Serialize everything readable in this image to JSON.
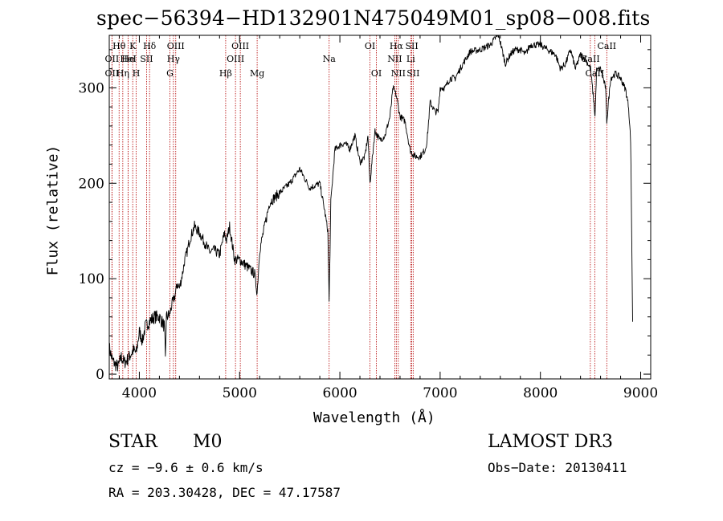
{
  "chart_data": {
    "type": "line",
    "title": "spec−56394−HD132901N475049M01_sp08−008.fits",
    "xlabel": "Wavelength (Å)",
    "ylabel": "Flux (relative)",
    "xlim": [
      3700,
      9100
    ],
    "ylim": [
      -5,
      355
    ],
    "x_ticks": [
      4000,
      5000,
      6000,
      7000,
      8000,
      9000
    ],
    "y_ticks": [
      0,
      100,
      200,
      300
    ],
    "series": [
      {
        "name": "spectrum",
        "x": [
          3700,
          3730,
          3760,
          3790,
          3820,
          3850,
          3880,
          3910,
          3940,
          3970,
          4000,
          4030,
          4060,
          4100,
          4150,
          4200,
          4250,
          4260,
          4270,
          4300,
          4330,
          4350,
          4380,
          4400,
          4430,
          4450,
          4480,
          4500,
          4550,
          4600,
          4650,
          4700,
          4750,
          4800,
          4850,
          4870,
          4900,
          4950,
          5000,
          5050,
          5100,
          5150,
          5175,
          5200,
          5250,
          5300,
          5400,
          5500,
          5600,
          5700,
          5800,
          5850,
          5880,
          5893,
          5910,
          5950,
          6000,
          6050,
          6100,
          6150,
          6200,
          6250,
          6280,
          6300,
          6350,
          6400,
          6450,
          6500,
          6530,
          6563,
          6600,
          6650,
          6700,
          6730,
          6760,
          6800,
          6850,
          6870,
          6900,
          6950,
          6980,
          7000,
          7050,
          7100,
          7150,
          7200,
          7300,
          7400,
          7500,
          7550,
          7580,
          7600,
          7650,
          7700,
          7750,
          7800,
          7850,
          7900,
          8000,
          8100,
          8150,
          8200,
          8250,
          8300,
          8350,
          8400,
          8450,
          8500,
          8530,
          8545,
          8560,
          8600,
          8650,
          8662,
          8700,
          8750,
          8800,
          8850,
          8880,
          8900,
          8910,
          8920
        ],
        "y": [
          28,
          15,
          10,
          8,
          18,
          12,
          15,
          20,
          25,
          22,
          45,
          35,
          50,
          55,
          60,
          60,
          50,
          15,
          60,
          62,
          75,
          80,
          95,
          90,
          105,
          118,
          130,
          140,
          155,
          148,
          138,
          128,
          130,
          125,
          148,
          140,
          155,
          120,
          120,
          115,
          110,
          105,
          85,
          130,
          155,
          180,
          190,
          200,
          215,
          195,
          200,
          170,
          150,
          75,
          180,
          235,
          240,
          242,
          236,
          250,
          222,
          228,
          250,
          200,
          255,
          245,
          250,
          270,
          300,
          292,
          270,
          265,
          235,
          230,
          228,
          228,
          235,
          245,
          285,
          275,
          275,
          300,
          300,
          310,
          310,
          320,
          338,
          340,
          345,
          352,
          355,
          348,
          325,
          335,
          340,
          340,
          335,
          345,
          345,
          338,
          335,
          320,
          325,
          340,
          320,
          335,
          330,
          320,
          288,
          270,
          318,
          320,
          300,
          265,
          310,
          315,
          310,
          298,
          280,
          245,
          150,
          55
        ]
      }
    ],
    "line_markers": [
      {
        "label": "Hθ",
        "x": 3798,
        "row": 0
      },
      {
        "label": "OII",
        "x": 3727,
        "row": 1
      },
      {
        "label": "OII",
        "x": 3727,
        "row": 2
      },
      {
        "label": "He",
        "x": 3889,
        "row": 1
      },
      {
        "label": "Hη",
        "x": 3835,
        "row": 2
      },
      {
        "label": "K",
        "x": 3934,
        "row": 0
      },
      {
        "label": "H",
        "x": 3969,
        "row": 2
      },
      {
        "label": "HeI",
        "x": 3889,
        "row": 1
      },
      {
        "label": "SII",
        "x": 4072,
        "row": 1
      },
      {
        "label": "Hδ",
        "x": 4102,
        "row": 0
      },
      {
        "label": "OIII",
        "x": 4363,
        "row": 0
      },
      {
        "label": "Hγ",
        "x": 4340,
        "row": 1
      },
      {
        "label": "G",
        "x": 4305,
        "row": 2
      },
      {
        "label": "Hβ",
        "x": 4861,
        "row": 2
      },
      {
        "label": "OIII",
        "x": 5007,
        "row": 0
      },
      {
        "label": "OIII",
        "x": 4959,
        "row": 1
      },
      {
        "label": "Mg",
        "x": 5175,
        "row": 2
      },
      {
        "label": "Na",
        "x": 5893,
        "row": 1
      },
      {
        "label": "OI",
        "x": 6300,
        "row": 0
      },
      {
        "label": "OI",
        "x": 6364,
        "row": 2
      },
      {
        "label": "Hα",
        "x": 6563,
        "row": 0
      },
      {
        "label": "NII",
        "x": 6548,
        "row": 1
      },
      {
        "label": "NII",
        "x": 6583,
        "row": 2
      },
      {
        "label": "SII",
        "x": 6717,
        "row": 0
      },
      {
        "label": "Li",
        "x": 6707,
        "row": 1
      },
      {
        "label": "SII",
        "x": 6731,
        "row": 2
      },
      {
        "label": "CaII",
        "x": 8662,
        "row": 0
      },
      {
        "label": "CaII",
        "x": 8498,
        "row": 1
      },
      {
        "label": "CaII",
        "x": 8542,
        "row": 2
      }
    ],
    "marker_color": "#b40000"
  },
  "info": {
    "object_type": "STAR",
    "subclass": "M0",
    "cz": "cz = −9.6 ± 0.6 km/s",
    "coords": "RA = 203.30428, DEC =  47.17587",
    "survey": "LAMOST DR3",
    "obs_date": "Obs−Date: 20130411"
  }
}
